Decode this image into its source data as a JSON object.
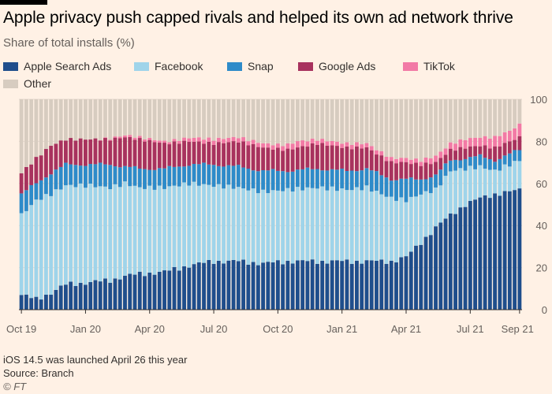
{
  "chart_data": {
    "type": "bar",
    "stacked": true,
    "title": "Apple privacy push capped rivals and helped its own ad network thrive",
    "subtitle": "Share of total installs (%)",
    "ylim": [
      0,
      100
    ],
    "yticks": [
      "0",
      "20",
      "40",
      "60",
      "80",
      "100"
    ],
    "xticks": [
      "Oct 19",
      "Jan 20",
      "Apr 20",
      "Jul 20",
      "Oct 20",
      "Jan 21",
      "Apr 21",
      "Jul 21",
      "Sep 21"
    ],
    "legend": [
      {
        "name": "Apple Search Ads",
        "color": "#1f4e8c"
      },
      {
        "name": "Facebook",
        "color": "#9fd4ea"
      },
      {
        "name": "Snap",
        "color": "#2e8bc9"
      },
      {
        "name": "Google Ads",
        "color": "#a8325e"
      },
      {
        "name": "TikTok",
        "color": "#f27aa6"
      },
      {
        "name": "Other",
        "color": "#d7ccc0"
      }
    ],
    "weeks": 102,
    "series": [
      {
        "name": "Apple Search Ads",
        "keypoints": [
          [
            0,
            7
          ],
          [
            3,
            5
          ],
          [
            6,
            8
          ],
          [
            9,
            12
          ],
          [
            14,
            13
          ],
          [
            18,
            14
          ],
          [
            21,
            16
          ],
          [
            24,
            17
          ],
          [
            29,
            18
          ],
          [
            34,
            21
          ],
          [
            39,
            23
          ],
          [
            44,
            23
          ],
          [
            49,
            22
          ],
          [
            54,
            23
          ],
          [
            60,
            23
          ],
          [
            66,
            23
          ],
          [
            70,
            23
          ],
          [
            75,
            23
          ],
          [
            78,
            25
          ],
          [
            81,
            32
          ],
          [
            84,
            39
          ],
          [
            87,
            45
          ],
          [
            90,
            50
          ],
          [
            93,
            53
          ],
          [
            96,
            55
          ],
          [
            99,
            56
          ],
          [
            101,
            57
          ]
        ]
      },
      {
        "name": "Facebook",
        "keypoints": [
          [
            0,
            38
          ],
          [
            3,
            47
          ],
          [
            6,
            47
          ],
          [
            9,
            47
          ],
          [
            14,
            46
          ],
          [
            18,
            44
          ],
          [
            21,
            44
          ],
          [
            24,
            41
          ],
          [
            29,
            40
          ],
          [
            34,
            39
          ],
          [
            39,
            36
          ],
          [
            44,
            35
          ],
          [
            49,
            34
          ],
          [
            54,
            34
          ],
          [
            60,
            35
          ],
          [
            66,
            34
          ],
          [
            70,
            35
          ],
          [
            75,
            30
          ],
          [
            78,
            27
          ],
          [
            81,
            23
          ],
          [
            84,
            18
          ],
          [
            87,
            21
          ],
          [
            90,
            17
          ],
          [
            93,
            15
          ],
          [
            96,
            11
          ],
          [
            99,
            13
          ],
          [
            101,
            14
          ]
        ]
      },
      {
        "name": "Snap",
        "keypoints": [
          [
            0,
            10
          ],
          [
            3,
            8
          ],
          [
            6,
            10
          ],
          [
            9,
            10
          ],
          [
            14,
            10
          ],
          [
            18,
            11
          ],
          [
            21,
            8
          ],
          [
            24,
            9
          ],
          [
            29,
            9
          ],
          [
            34,
            9
          ],
          [
            39,
            10
          ],
          [
            44,
            10
          ],
          [
            49,
            10
          ],
          [
            54,
            9
          ],
          [
            60,
            9
          ],
          [
            66,
            9
          ],
          [
            70,
            9
          ],
          [
            75,
            9
          ],
          [
            78,
            10
          ],
          [
            81,
            7
          ],
          [
            84,
            7
          ],
          [
            87,
            5
          ],
          [
            90,
            5
          ],
          [
            93,
            5
          ],
          [
            96,
            5
          ],
          [
            99,
            5
          ],
          [
            101,
            5
          ]
        ]
      },
      {
        "name": "Google Ads",
        "keypoints": [
          [
            0,
            10
          ],
          [
            3,
            12
          ],
          [
            6,
            13
          ],
          [
            9,
            12
          ],
          [
            14,
            12
          ],
          [
            18,
            12
          ],
          [
            21,
            14
          ],
          [
            24,
            14
          ],
          [
            29,
            12
          ],
          [
            34,
            11
          ],
          [
            39,
            10
          ],
          [
            44,
            12
          ],
          [
            49,
            11
          ],
          [
            54,
            10
          ],
          [
            60,
            12
          ],
          [
            66,
            11
          ],
          [
            70,
            10
          ],
          [
            75,
            8
          ],
          [
            78,
            8
          ],
          [
            81,
            7
          ],
          [
            84,
            6
          ],
          [
            87,
            5
          ],
          [
            90,
            5
          ],
          [
            93,
            5
          ],
          [
            96,
            6
          ],
          [
            99,
            6
          ],
          [
            101,
            6
          ]
        ]
      },
      {
        "name": "TikTok",
        "keypoints": [
          [
            0,
            0
          ],
          [
            15,
            0
          ],
          [
            22,
            1
          ],
          [
            30,
            1
          ],
          [
            36,
            2
          ],
          [
            44,
            2
          ],
          [
            52,
            2
          ],
          [
            56,
            3
          ],
          [
            60,
            2
          ],
          [
            66,
            2
          ],
          [
            70,
            2
          ],
          [
            75,
            2
          ],
          [
            78,
            2
          ],
          [
            81,
            2
          ],
          [
            84,
            3
          ],
          [
            87,
            3
          ],
          [
            90,
            4
          ],
          [
            93,
            4
          ],
          [
            96,
            5
          ],
          [
            99,
            5
          ],
          [
            101,
            6
          ]
        ]
      }
    ],
    "other_fills_to": 100,
    "annotation": "iOS 14.5 was launched April 26 this year",
    "source": "Source: Branch",
    "credit": "© FT"
  }
}
